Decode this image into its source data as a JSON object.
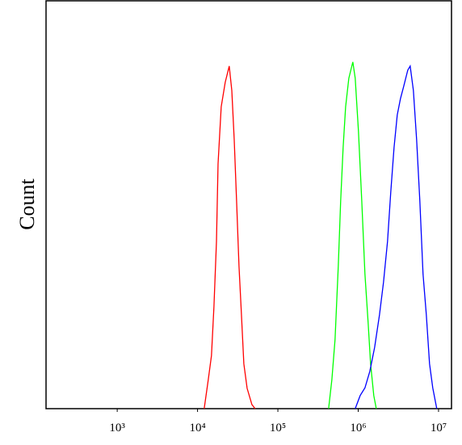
{
  "chart_data": {
    "type": "line",
    "y_label": "Count",
    "xscale": "log",
    "xlim": [
      130,
      14500000
    ],
    "ylim": [
      0,
      100
    ],
    "xticks": [
      {
        "value": 1000,
        "label": "10³"
      },
      {
        "value": 10000,
        "label": "10⁴"
      },
      {
        "value": 100000,
        "label": "10⁵"
      },
      {
        "value": 1000000,
        "label": "10⁶"
      },
      {
        "value": 10000000,
        "label": "10⁷"
      }
    ],
    "series": [
      {
        "color": "#ff0000",
        "x": [
          12100,
          13600,
          14900,
          16000,
          17200,
          18000,
          19700,
          22100,
          24800,
          26700,
          28600,
          30600,
          32800,
          35200,
          37700,
          41400,
          47500,
          52100
        ],
        "values": [
          0,
          7.1,
          13,
          25,
          41,
          60,
          74,
          80,
          84,
          78,
          66,
          51,
          35,
          23,
          11,
          5,
          1,
          0
        ]
      },
      {
        "color": "#00ff00",
        "x": [
          428000,
          470000,
          515000,
          565000,
          605000,
          649000,
          697000,
          764000,
          857000,
          918000,
          1007000,
          1107000,
          1213000,
          1330000,
          1426000,
          1563000,
          1679000
        ],
        "values": [
          0,
          7.1,
          17,
          35,
          51,
          64,
          74,
          81,
          85,
          81,
          68,
          51,
          33,
          21,
          11,
          3.2,
          0
        ]
      },
      {
        "color": "#0000ff",
        "x": [
          918000,
          1057000,
          1213000,
          1393000,
          1600000,
          1840000,
          2065000,
          2317000,
          2541000,
          2793000,
          3062000,
          3357000,
          3681000,
          4140000,
          4436000,
          4864000,
          5333000,
          5848000,
          6412000,
          7047000,
          7727000,
          8472000,
          9506000
        ],
        "values": [
          0,
          3.2,
          5.1,
          9.1,
          15,
          23,
          31,
          41,
          53,
          64,
          72,
          76,
          79,
          83,
          84,
          78,
          66,
          51,
          33,
          23,
          11,
          5.1,
          0
        ]
      }
    ]
  }
}
